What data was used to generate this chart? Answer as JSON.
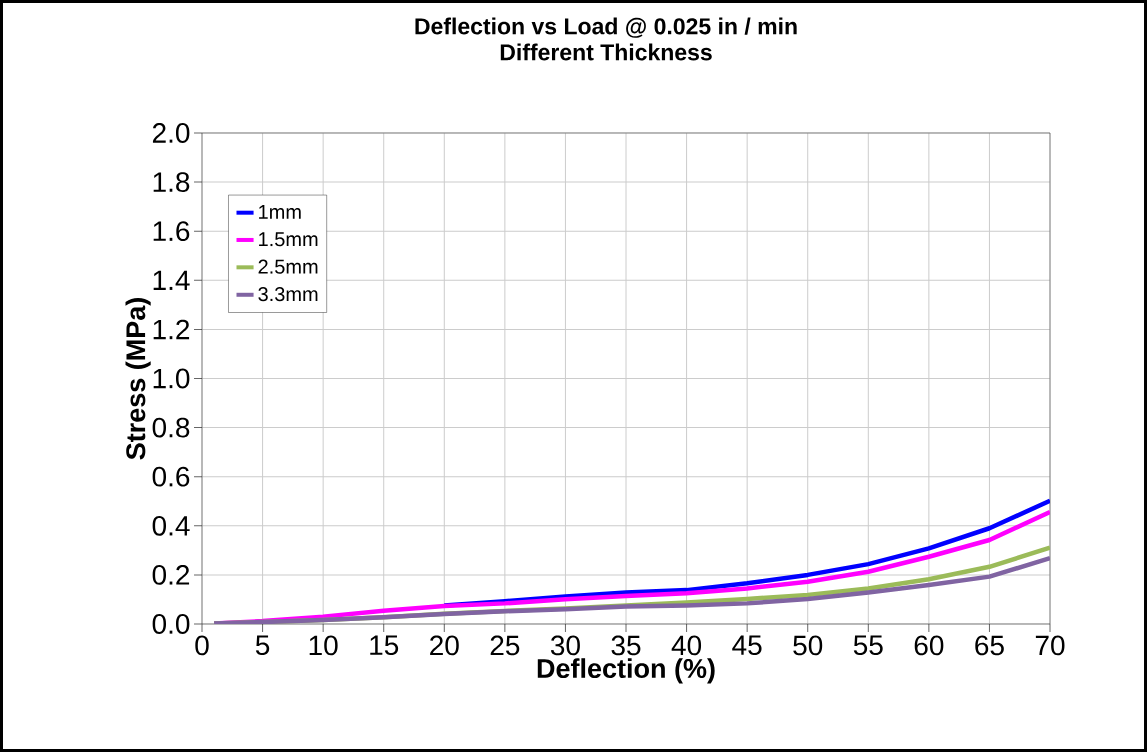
{
  "chart_data": {
    "type": "line",
    "title": "Deflection vs Load @  0.025 in / min",
    "subtitle": "Different Thickness",
    "xlabel": "Deflection  (%)",
    "ylabel": "Stress (MPa)",
    "x": [
      1,
      5,
      10,
      15,
      20,
      25,
      30,
      35,
      40,
      45,
      50,
      55,
      60,
      65,
      70
    ],
    "series": [
      {
        "name": "1mm",
        "color": "#0000ff",
        "values": [
          null,
          null,
          null,
          null,
          0.075,
          0.093,
          0.112,
          0.128,
          0.138,
          0.166,
          0.2,
          0.244,
          0.308,
          0.39,
          0.502
        ]
      },
      {
        "name": "1.5mm",
        "color": "#ff00ff",
        "values": [
          0.002,
          0.012,
          0.03,
          0.054,
          0.073,
          0.084,
          0.101,
          0.114,
          0.125,
          0.145,
          0.172,
          0.213,
          0.274,
          0.342,
          0.456
        ]
      },
      {
        "name": "2.5mm",
        "color": "#9bbb59",
        "values": [
          0.002,
          0.008,
          0.016,
          0.027,
          0.042,
          0.053,
          0.063,
          0.075,
          0.088,
          0.102,
          0.118,
          0.145,
          0.182,
          0.233,
          0.311
        ]
      },
      {
        "name": "3.3mm",
        "color": "#8064a2",
        "values": [
          0.002,
          0.008,
          0.016,
          0.027,
          0.041,
          0.052,
          0.06,
          0.071,
          0.075,
          0.084,
          0.102,
          0.128,
          0.159,
          0.193,
          0.268
        ]
      }
    ],
    "xlim": [
      0,
      70
    ],
    "xticks": [
      0,
      5,
      10,
      15,
      20,
      25,
      30,
      35,
      40,
      45,
      50,
      55,
      60,
      65,
      70
    ],
    "ylim": [
      0,
      2
    ],
    "yticks": [
      {
        "value": 0,
        "label": "0.0"
      },
      {
        "value": 0.2,
        "label": "0.2"
      },
      {
        "value": 0.4,
        "label": "0.4"
      },
      {
        "value": 0.6,
        "label": "0.6"
      },
      {
        "value": 0.8,
        "label": "0.8"
      },
      {
        "value": 1.0,
        "label": "1.0"
      },
      {
        "value": 1.2,
        "label": "1.2"
      },
      {
        "value": 1.4,
        "label": "1.4"
      },
      {
        "value": 1.6,
        "label": "1.6"
      },
      {
        "value": 1.8,
        "label": "1.8"
      },
      {
        "value": 2.0,
        "label": "2.0"
      }
    ],
    "grid": true,
    "legend": "top left",
    "marker": "none",
    "line_style": "solid"
  }
}
